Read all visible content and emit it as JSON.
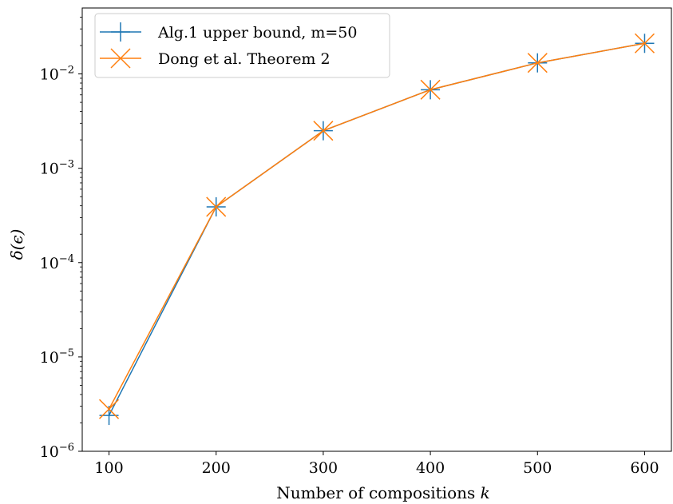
{
  "chart_data": {
    "type": "line",
    "xscale": "linear",
    "yscale": "log",
    "xlabel": "Number of compositions k",
    "ylabel": "δ(ϵ)",
    "xlim": [
      75,
      625
    ],
    "ylim": [
      1e-06,
      0.05
    ],
    "xticks": [
      100,
      200,
      300,
      400,
      500,
      600
    ],
    "yticks": [
      {
        "value": 1e-06,
        "base": "10",
        "exp": "−6"
      },
      {
        "value": 1e-05,
        "base": "10",
        "exp": "−5"
      },
      {
        "value": 0.0001,
        "base": "10",
        "exp": "−4"
      },
      {
        "value": 0.001,
        "base": "10",
        "exp": "−3"
      },
      {
        "value": 0.01,
        "base": "10",
        "exp": "−2"
      }
    ],
    "legend_position": "top-left",
    "x": [
      100,
      200,
      300,
      400,
      500,
      600
    ],
    "series": [
      {
        "name": "Alg.1 upper bound, m=50",
        "marker": "+",
        "color": "#1f77b4",
        "values": [
          2.4e-06,
          0.00039,
          0.0025,
          0.0068,
          0.0131,
          0.0211
        ]
      },
      {
        "name": "Dong et al. Theorem 2",
        "marker": "x",
        "color": "#ff7f0e",
        "values": [
          2.8e-06,
          0.00039,
          0.0025,
          0.0068,
          0.0131,
          0.0211
        ]
      }
    ]
  }
}
